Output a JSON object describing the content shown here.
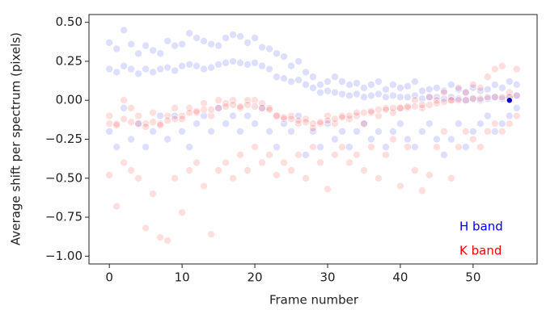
{
  "chart_data": {
    "type": "scatter",
    "xlabel": "Frame number",
    "ylabel": "Average shift per spectrum (pixels)",
    "x": [
      0,
      0,
      0,
      1,
      1,
      1,
      2,
      2,
      2,
      3,
      3,
      3,
      4,
      4,
      4,
      5,
      5,
      5,
      6,
      6,
      6,
      7,
      7,
      7,
      8,
      8,
      8,
      9,
      9,
      9,
      10,
      10,
      10,
      11,
      11,
      11,
      12,
      12,
      12,
      13,
      13,
      13,
      14,
      14,
      14,
      15,
      15,
      15,
      16,
      16,
      16,
      17,
      17,
      17,
      18,
      18,
      18,
      19,
      19,
      19,
      20,
      20,
      20,
      21,
      21,
      21,
      22,
      22,
      22,
      23,
      23,
      23,
      24,
      24,
      24,
      25,
      25,
      25,
      26,
      26,
      26,
      27,
      27,
      27,
      28,
      28,
      28,
      29,
      29,
      29,
      30,
      30,
      30,
      31,
      31,
      31,
      32,
      32,
      32,
      33,
      33,
      33,
      34,
      34,
      34,
      35,
      35,
      35,
      36,
      36,
      36,
      37,
      37,
      37,
      38,
      38,
      38,
      39,
      39,
      39,
      40,
      40,
      40,
      41,
      41,
      41,
      42,
      42,
      42,
      43,
      43,
      43,
      44,
      44,
      44,
      45,
      45,
      45,
      46,
      46,
      46,
      47,
      47,
      47,
      48,
      48,
      48,
      49,
      49,
      49,
      50,
      50,
      50,
      51,
      51,
      51,
      52,
      52,
      52,
      53,
      53,
      53,
      54,
      54,
      54,
      55,
      55,
      55,
      56,
      56,
      56
    ],
    "series": [
      {
        "name": "H band",
        "color": "#0000ff",
        "alpha": 0.13,
        "values": [
          0.37,
          0.2,
          -0.2,
          0.33,
          0.18,
          -0.3,
          0.45,
          0.22,
          -0.05,
          0.36,
          0.2,
          -0.25,
          0.3,
          0.17,
          -0.15,
          0.35,
          0.2,
          -0.3,
          0.32,
          0.18,
          -0.2,
          0.3,
          0.2,
          -0.1,
          0.38,
          0.21,
          -0.25,
          0.35,
          0.19,
          -0.1,
          0.36,
          0.22,
          -0.2,
          0.43,
          0.23,
          -0.3,
          0.4,
          0.22,
          -0.15,
          0.38,
          0.2,
          -0.1,
          0.36,
          0.21,
          -0.2,
          0.35,
          0.23,
          -0.05,
          0.4,
          0.24,
          -0.15,
          0.42,
          0.25,
          -0.1,
          0.41,
          0.24,
          -0.2,
          0.37,
          0.23,
          -0.1,
          0.4,
          0.24,
          -0.15,
          0.34,
          0.22,
          -0.05,
          0.33,
          0.2,
          -0.2,
          0.3,
          0.15,
          -0.3,
          0.28,
          0.14,
          -0.15,
          0.22,
          0.12,
          -0.2,
          0.25,
          0.13,
          -0.1,
          0.18,
          0.1,
          -0.35,
          0.15,
          0.08,
          -0.2,
          0.1,
          0.05,
          -0.3,
          0.12,
          0.06,
          -0.15,
          0.15,
          0.05,
          -0.25,
          0.12,
          0.04,
          -0.2,
          0.1,
          0.03,
          -0.3,
          0.11,
          0.04,
          -0.2,
          0.08,
          0.02,
          -0.15,
          0.1,
          0.03,
          -0.25,
          0.12,
          0.04,
          -0.2,
          0.07,
          0.02,
          -0.3,
          0.1,
          0.03,
          -0.2,
          0.08,
          0.02,
          -0.15,
          0.09,
          0.02,
          -0.25,
          0.12,
          0.03,
          -0.3,
          0.06,
          0.01,
          -0.2,
          0.07,
          0.02,
          -0.15,
          0.08,
          0.02,
          -0.25,
          0.06,
          0.01,
          -0.35,
          0.1,
          0.02,
          -0.25,
          0.07,
          0.01,
          -0.15,
          0.05,
          0.0,
          -0.3,
          0.08,
          0.01,
          -0.2,
          0.06,
          0.0,
          -0.15,
          0.07,
          0.01,
          -0.1,
          0.1,
          0.02,
          -0.2,
          0.08,
          0.01,
          -0.15,
          0.12,
          0.02,
          -0.1,
          0.1,
          0.03,
          -0.05
        ]
      },
      {
        "name": "K band",
        "color": "#ff0000",
        "alpha": 0.13,
        "values": [
          -0.1,
          -0.15,
          -0.48,
          -0.15,
          -0.16,
          -0.68,
          0.0,
          -0.12,
          -0.4,
          -0.05,
          -0.14,
          -0.45,
          -0.1,
          -0.15,
          -0.5,
          -0.15,
          -0.17,
          -0.82,
          -0.08,
          -0.14,
          -0.6,
          -0.15,
          -0.16,
          -0.88,
          -0.1,
          -0.13,
          -0.9,
          -0.05,
          -0.12,
          -0.5,
          -0.1,
          -0.12,
          -0.72,
          -0.05,
          -0.08,
          -0.45,
          -0.08,
          -0.07,
          -0.4,
          -0.02,
          -0.06,
          -0.55,
          -0.1,
          -0.06,
          -0.86,
          0.0,
          -0.05,
          -0.45,
          -0.02,
          -0.04,
          -0.4,
          0.0,
          -0.03,
          -0.5,
          -0.05,
          -0.04,
          -0.35,
          0.0,
          -0.03,
          -0.45,
          0.0,
          -0.04,
          -0.3,
          -0.02,
          -0.05,
          -0.4,
          -0.05,
          -0.06,
          -0.35,
          -0.1,
          -0.1,
          -0.48,
          -0.12,
          -0.11,
          -0.4,
          -0.1,
          -0.12,
          -0.45,
          -0.15,
          -0.13,
          -0.35,
          -0.12,
          -0.14,
          -0.5,
          -0.18,
          -0.15,
          -0.3,
          -0.15,
          -0.14,
          -0.4,
          -0.1,
          -0.13,
          -0.57,
          -0.15,
          -0.12,
          -0.35,
          -0.1,
          -0.11,
          -0.3,
          -0.12,
          -0.1,
          -0.4,
          -0.1,
          -0.08,
          -0.35,
          -0.15,
          -0.08,
          -0.45,
          -0.08,
          -0.07,
          -0.3,
          -0.1,
          -0.06,
          -0.5,
          -0.05,
          -0.06,
          -0.35,
          -0.08,
          -0.05,
          -0.25,
          -0.05,
          -0.05,
          -0.55,
          -0.05,
          -0.04,
          -0.3,
          0.0,
          -0.04,
          -0.45,
          -0.05,
          -0.03,
          -0.58,
          0.02,
          -0.03,
          -0.48,
          0.0,
          -0.02,
          -0.3,
          0.05,
          -0.01,
          -0.2,
          0.0,
          0.0,
          -0.5,
          0.08,
          0.0,
          -0.3,
          0.05,
          0.0,
          -0.2,
          0.1,
          0.01,
          -0.25,
          0.08,
          0.01,
          -0.3,
          0.15,
          0.02,
          -0.2,
          0.2,
          0.02,
          -0.15,
          0.22,
          0.02,
          -0.2,
          0.05,
          0.02,
          -0.15,
          0.2,
          0.03,
          -0.1
        ]
      }
    ],
    "reference_point": {
      "x": 55,
      "y": 0,
      "color": "#0000cc"
    },
    "xlim": [
      -2.8,
      58.8
    ],
    "ylim": [
      -1.05,
      0.55
    ],
    "xticks": [
      0,
      10,
      20,
      30,
      40,
      50
    ],
    "yticks": [
      {
        "value": 0.5,
        "label": "0.50"
      },
      {
        "value": 0.25,
        "label": "0.25"
      },
      {
        "value": 0,
        "label": "0.00"
      },
      {
        "value": -0.25,
        "label": "−0.25"
      },
      {
        "value": -0.5,
        "label": "−0.50"
      },
      {
        "value": -0.75,
        "label": "−0.75"
      },
      {
        "value": -1,
        "label": "−1.00"
      }
    ],
    "legend": "lower right"
  }
}
